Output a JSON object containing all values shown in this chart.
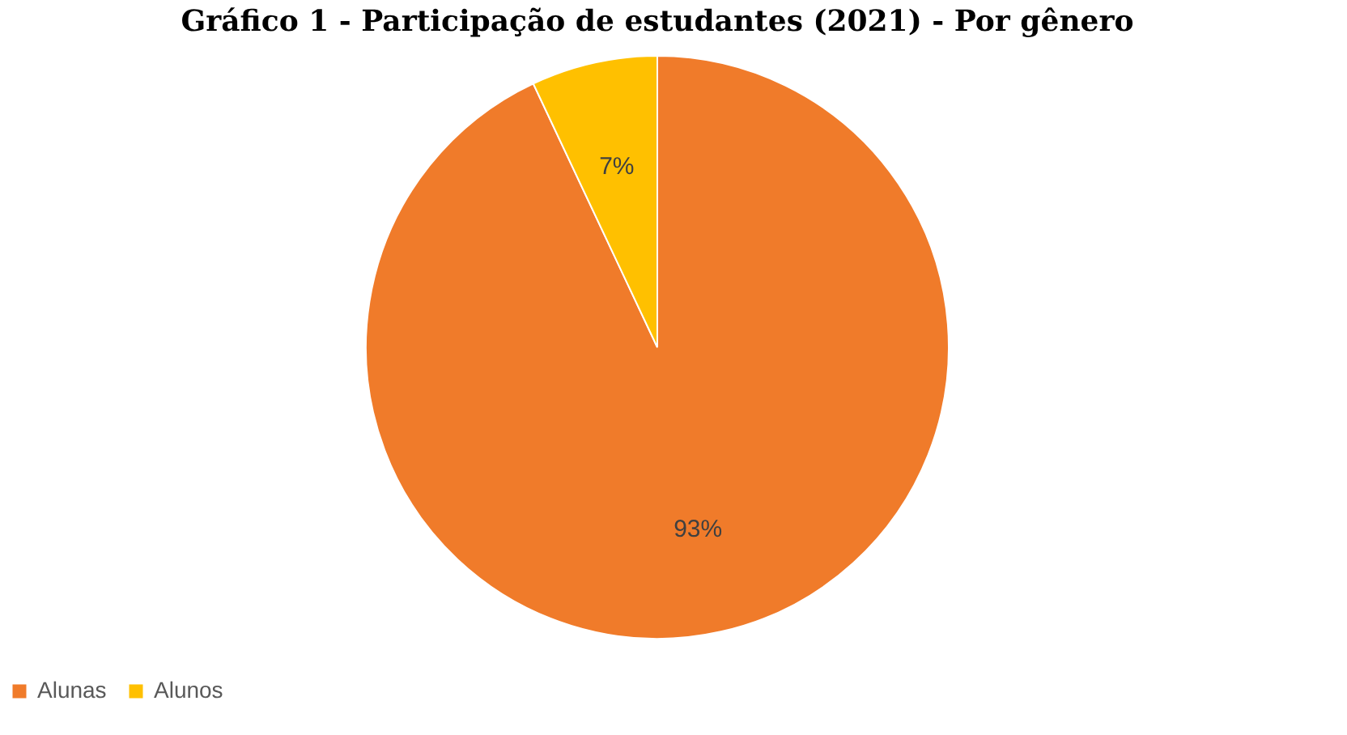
{
  "chart_data": {
    "type": "pie",
    "title": "Gráfico 1 - Participação de estudantes (2021) - Por gênero",
    "categories": [
      "Alunas",
      "Alunos"
    ],
    "values": [
      93,
      7
    ],
    "colors": [
      "#f07b2a",
      "#ffc000"
    ],
    "value_labels": [
      "93%",
      "7%"
    ],
    "legend": "bottom"
  }
}
